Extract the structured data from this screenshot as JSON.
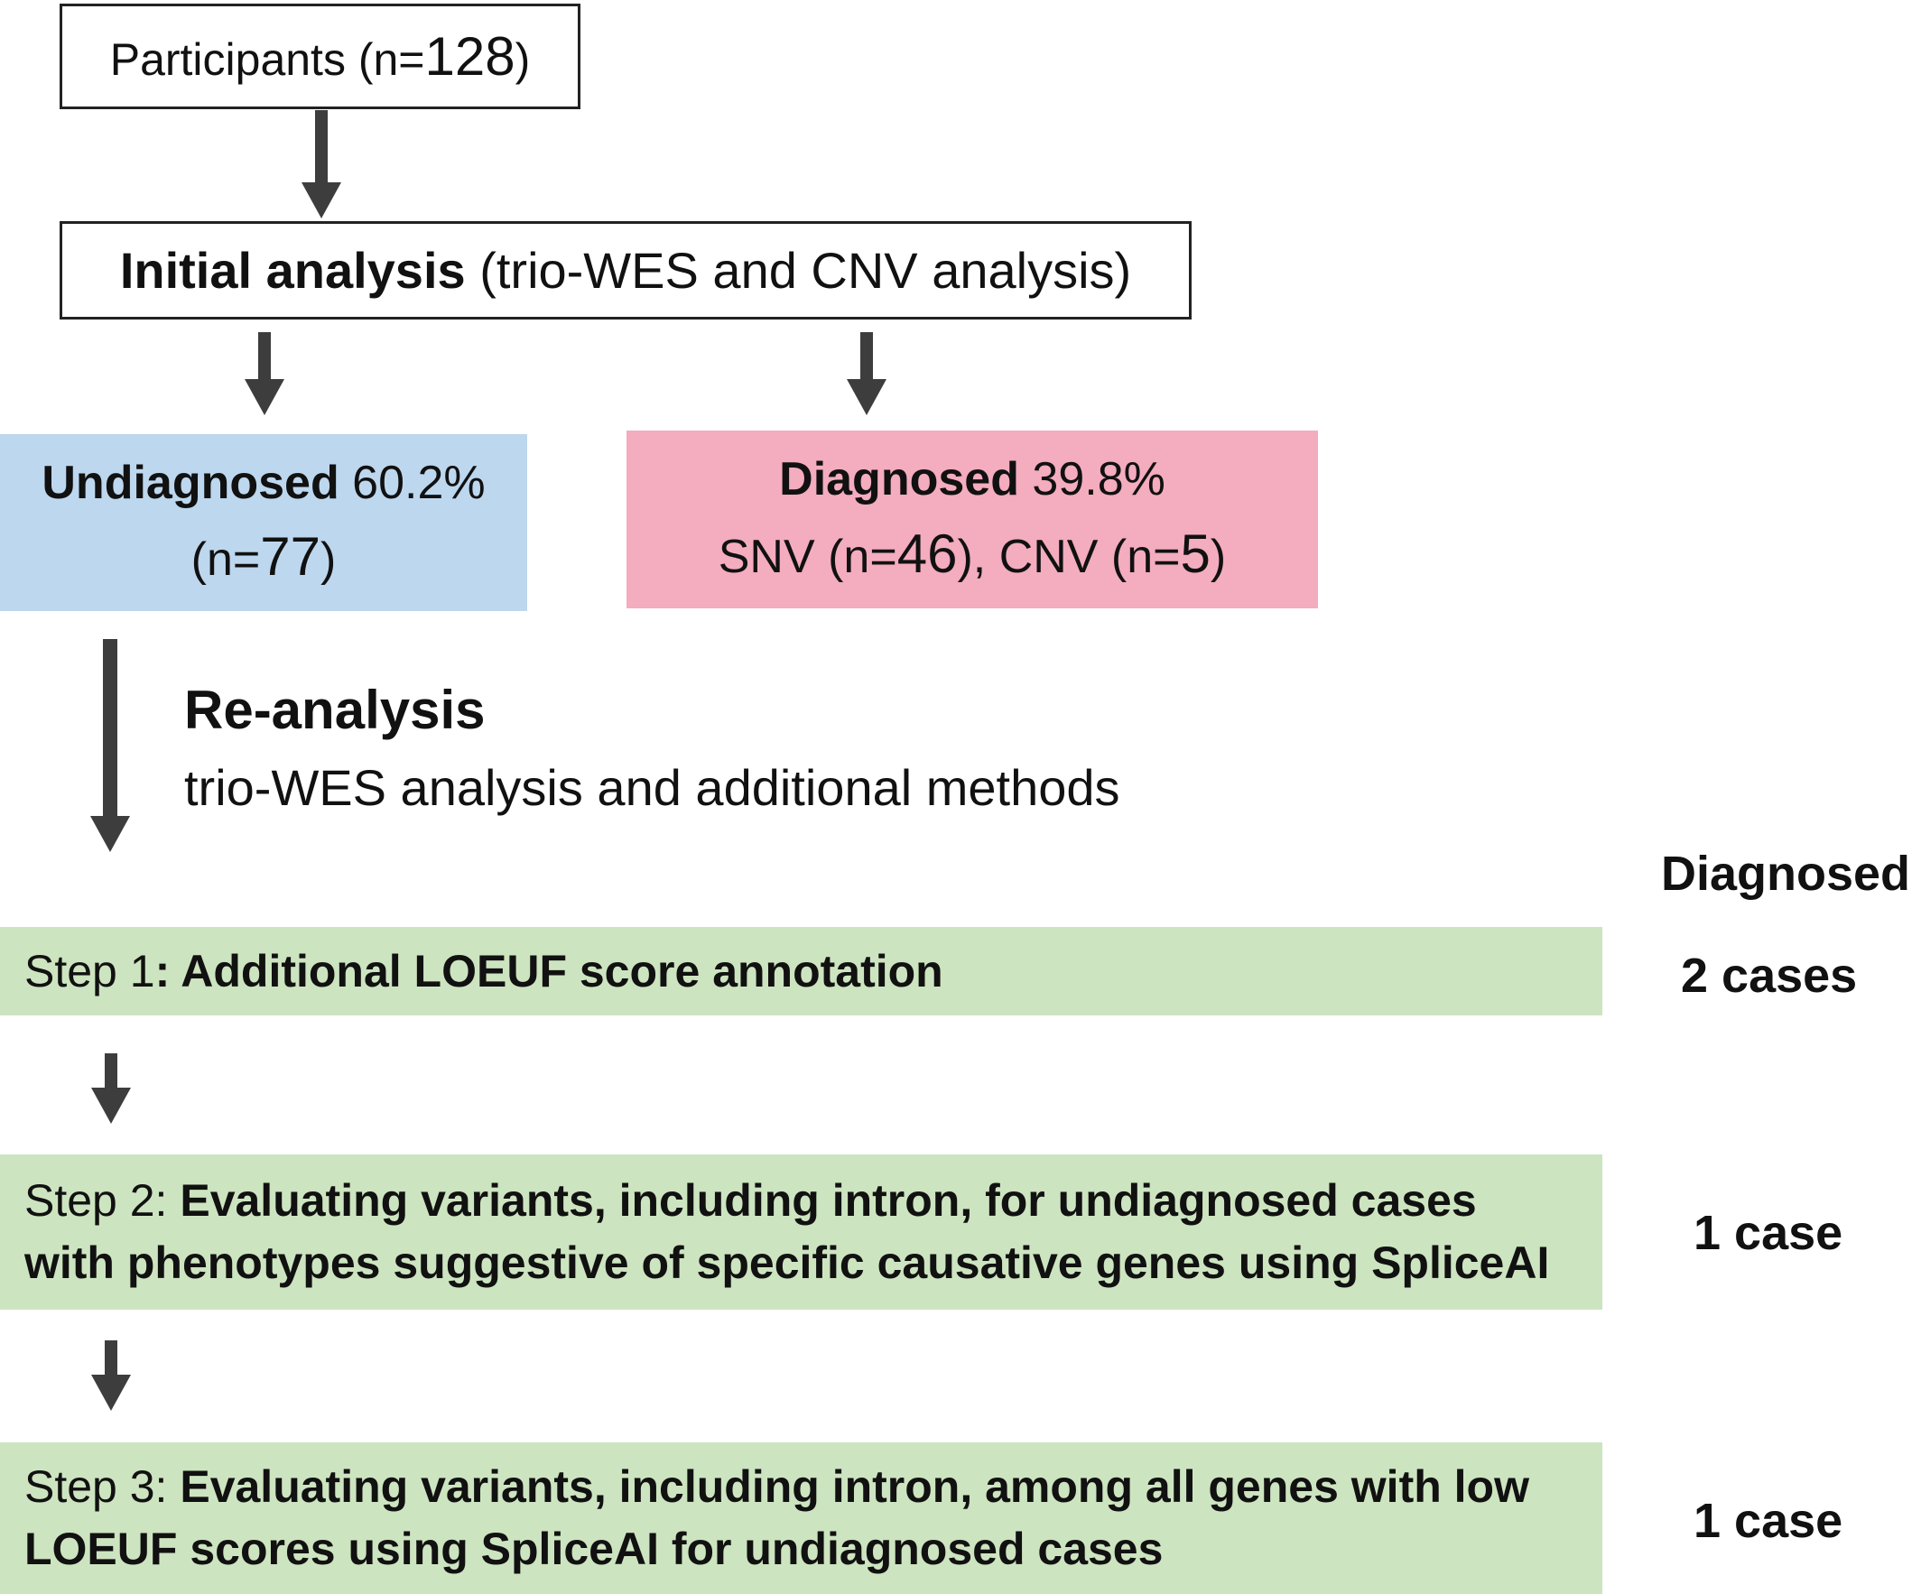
{
  "participants": {
    "label": "Participants (n=",
    "count": "128",
    "close": ")"
  },
  "initial": {
    "bold": "Initial analysis",
    "rest": " (trio-WES and CNV analysis)"
  },
  "undiagnosed": {
    "bold": "Undiagnosed",
    "pct": " 60.2%",
    "line2a": "(n=",
    "n": "77",
    "line2b": ")",
    "color": "#bdd7ee"
  },
  "diagnosed": {
    "bold": "Diagnosed",
    "pct": " 39.8%",
    "snv_a": "SNV (n=",
    "snv_n": "46",
    "snv_b": "), CNV (n=",
    "cnv_n": "5",
    "cnv_b": ")",
    "color": "#f4acbf"
  },
  "reanalysis": {
    "title": "Re-analysis",
    "subtitle": "trio-WES analysis and additional methods"
  },
  "diagnosed_header": "Diagnosed",
  "steps": [
    {
      "prefix": "Step 1",
      "bold": ": Additional LOEUF score annotation",
      "result": "2 cases"
    },
    {
      "prefix": "Step 2: ",
      "bold1": "Evaluating variants, including intron, for undiagnosed cases",
      "bold2": "with phenotypes suggestive of specific causative genes using SpliceAI",
      "result": "1 case"
    },
    {
      "prefix": "Step 3: ",
      "bold1": "Evaluating variants, including intron, among all genes with low",
      "bold2": "LOEUF scores using SpliceAI for undiagnosed cases",
      "result": "1 case"
    }
  ],
  "colors": {
    "step_bg": "#cde4c0",
    "arrow": "#3d3d3d"
  }
}
